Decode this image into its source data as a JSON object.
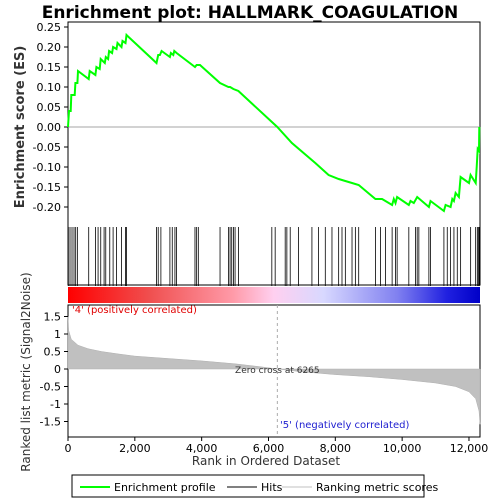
{
  "chart_data": {
    "type": "line",
    "title": "Enrichment plot: HALLMARK_COAGULATION",
    "top_panel": {
      "ylabel": "Enrichment score (ES)",
      "ylim": [
        -0.22,
        0.25
      ],
      "yticks": [
        "0.25",
        "0.20",
        "0.15",
        "0.10",
        "0.05",
        "0.00",
        "-0.05",
        "-0.10",
        "-0.15",
        "-0.20"
      ],
      "yvals": [
        0.25,
        0.2,
        0.15,
        0.1,
        0.05,
        0.0,
        -0.05,
        -0.1,
        -0.15,
        -0.2
      ],
      "line_color": "#00ff00",
      "enrichment_profile": [
        [
          0,
          0.0
        ],
        [
          30,
          0.04
        ],
        [
          80,
          0.04
        ],
        [
          100,
          0.08
        ],
        [
          200,
          0.08
        ],
        [
          220,
          0.11
        ],
        [
          280,
          0.11
        ],
        [
          300,
          0.14
        ],
        [
          620,
          0.12
        ],
        [
          650,
          0.14
        ],
        [
          820,
          0.13
        ],
        [
          850,
          0.15
        ],
        [
          950,
          0.145
        ],
        [
          980,
          0.17
        ],
        [
          1100,
          0.16
        ],
        [
          1130,
          0.175
        ],
        [
          1200,
          0.17
        ],
        [
          1230,
          0.19
        ],
        [
          1320,
          0.185
        ],
        [
          1350,
          0.2
        ],
        [
          1450,
          0.195
        ],
        [
          1480,
          0.21
        ],
        [
          1600,
          0.2
        ],
        [
          1630,
          0.215
        ],
        [
          1720,
          0.21
        ],
        [
          1750,
          0.23
        ],
        [
          2650,
          0.16
        ],
        [
          2700,
          0.18
        ],
        [
          2750,
          0.18
        ],
        [
          2800,
          0.19
        ],
        [
          3050,
          0.175
        ],
        [
          3080,
          0.185
        ],
        [
          3150,
          0.18
        ],
        [
          3180,
          0.19
        ],
        [
          3250,
          0.185
        ],
        [
          3800,
          0.15
        ],
        [
          3850,
          0.155
        ],
        [
          3950,
          0.155
        ],
        [
          4550,
          0.11
        ],
        [
          4800,
          0.1
        ],
        [
          4850,
          0.1
        ],
        [
          4950,
          0.095
        ],
        [
          5100,
          0.09
        ],
        [
          6265,
          0.0
        ],
        [
          6700,
          -0.04
        ],
        [
          7400,
          -0.09
        ],
        [
          7800,
          -0.12
        ],
        [
          8100,
          -0.13
        ],
        [
          8300,
          -0.135
        ],
        [
          8500,
          -0.14
        ],
        [
          8700,
          -0.145
        ],
        [
          9200,
          -0.18
        ],
        [
          9400,
          -0.18
        ],
        [
          9700,
          -0.195
        ],
        [
          9750,
          -0.18
        ],
        [
          9800,
          -0.19
        ],
        [
          9850,
          -0.175
        ],
        [
          10200,
          -0.195
        ],
        [
          10250,
          -0.185
        ],
        [
          10350,
          -0.19
        ],
        [
          10450,
          -0.175
        ],
        [
          10800,
          -0.2
        ],
        [
          10850,
          -0.185
        ],
        [
          11250,
          -0.21
        ],
        [
          11300,
          -0.195
        ],
        [
          11450,
          -0.2
        ],
        [
          11500,
          -0.18
        ],
        [
          11550,
          -0.185
        ],
        [
          11600,
          -0.165
        ],
        [
          11700,
          -0.175
        ],
        [
          11750,
          -0.125
        ],
        [
          12000,
          -0.14
        ],
        [
          12050,
          -0.12
        ],
        [
          12200,
          -0.14
        ],
        [
          12230,
          -0.1
        ],
        [
          12260,
          -0.055
        ],
        [
          12300,
          -0.06
        ],
        [
          12310,
          0.0
        ]
      ]
    },
    "hits": [
      10,
      60,
      120,
      180,
      230,
      280,
      620,
      820,
      900,
      980,
      1080,
      1130,
      1250,
      1350,
      1450,
      1600,
      1720,
      1750,
      2650,
      2700,
      2780,
      3050,
      3120,
      3200,
      3250,
      3800,
      3850,
      3900,
      4550,
      4800,
      4850,
      4900,
      4950,
      5000,
      5100,
      6100,
      6200,
      6500,
      6550,
      6650,
      6900,
      7300,
      7500,
      7700,
      7900,
      8100,
      8200,
      8300,
      8500,
      8600,
      8700,
      9200,
      9350,
      9500,
      9700,
      9800,
      9850,
      10200,
      10400,
      10450,
      10500,
      10800,
      10850,
      11250,
      11350,
      11450,
      11550,
      11650,
      11750,
      12050,
      12200,
      12250,
      12280,
      12310
    ],
    "bottom_panel": {
      "ylabel": "Ranked list metric (Signal2Noise)",
      "xlabel": "Rank in Ordered Dataset",
      "ylim": [
        -1.6,
        1.6
      ],
      "yticks": [
        "1.5",
        "1",
        "0.5",
        "0",
        "-0.5",
        "-1",
        "-1.5"
      ],
      "yvals": [
        1.5,
        1.0,
        0.5,
        0.0,
        -0.5,
        -1.0,
        -1.5
      ],
      "metric_curve": [
        [
          0,
          1.5
        ],
        [
          20,
          1.1
        ],
        [
          100,
          0.85
        ],
        [
          300,
          0.68
        ],
        [
          600,
          0.58
        ],
        [
          1000,
          0.5
        ],
        [
          1500,
          0.43
        ],
        [
          2000,
          0.37
        ],
        [
          3000,
          0.3
        ],
        [
          4000,
          0.23
        ],
        [
          5000,
          0.15
        ],
        [
          5800,
          0.06
        ],
        [
          6265,
          0.0
        ],
        [
          7000,
          -0.08
        ],
        [
          8000,
          -0.16
        ],
        [
          9000,
          -0.22
        ],
        [
          10000,
          -0.3
        ],
        [
          11000,
          -0.4
        ],
        [
          11600,
          -0.5
        ],
        [
          12000,
          -0.65
        ],
        [
          12200,
          -0.85
        ],
        [
          12300,
          -1.2
        ],
        [
          12330,
          -1.58
        ]
      ],
      "zero_cross_label": "Zero cross at 6265",
      "zero_cross": 6265,
      "positive_label": "'4' (positively correlated)",
      "negative_label": "'5' (negatively correlated)",
      "positive_color": "#ff0000",
      "negative_color": "#0000ff"
    },
    "x": {
      "xlim": [
        0,
        12330
      ],
      "xticks": [
        "0",
        "2,000",
        "4,000",
        "6,000",
        "8,000",
        "10,000",
        "12,000"
      ],
      "xvals": [
        0,
        2000,
        4000,
        6000,
        8000,
        10000,
        12000
      ]
    },
    "legend": {
      "placement": "bottom",
      "items": [
        {
          "label": "Enrichment profile",
          "color": "#00ff00"
        },
        {
          "label": "Hits",
          "color": "#000000"
        },
        {
          "label": "Ranking metric scores",
          "color": "#c0c0c0"
        }
      ]
    }
  }
}
